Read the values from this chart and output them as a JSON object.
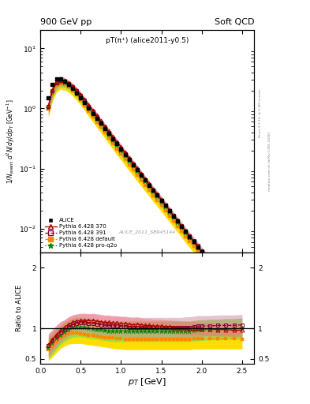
{
  "title_left": "900 GeV pp",
  "title_right": "Soft QCD",
  "plot_title": "pT(π⁺) (alice2011-y0.5)",
  "watermark": "ALICE_2011_S8945144",
  "right_label_top": "Rivet 3.1.10, ≥ 3.4M events",
  "right_label_bot": "mcplots.cern.ch [arXiv:1306.3436]",
  "ylabel": "1/N_{event} d²N/dy/dp_T [GeV⁻¹]",
  "ylabel_ratio": "Ratio to ALICE",
  "xlabel": "p_T [GeV]",
  "xlim": [
    0.0,
    2.65
  ],
  "ylim_main": [
    0.004,
    20
  ],
  "ylim_ratio": [
    0.42,
    2.25
  ],
  "ratio_yticks": [
    0.5,
    1.0,
    2.0
  ],
  "legend_entries": [
    "ALICE",
    "Pythia 6.428 370",
    "Pythia 6.428 391",
    "Pythia 6.428 default",
    "Pythia 6.428 pro-q2o"
  ],
  "calice": "#000000",
  "c370": "#aa0000",
  "c391": "#880044",
  "cdef": "#ff8800",
  "cpro": "#008800",
  "bc370": "#ff6666",
  "bc391": "#cc88aa",
  "bcdef": "#ffdd00",
  "bcpro": "#99dd44",
  "pt_alice": [
    0.1,
    0.15,
    0.2,
    0.25,
    0.3,
    0.35,
    0.4,
    0.45,
    0.5,
    0.55,
    0.6,
    0.65,
    0.7,
    0.75,
    0.8,
    0.85,
    0.9,
    0.95,
    1.0,
    1.05,
    1.1,
    1.15,
    1.2,
    1.25,
    1.3,
    1.35,
    1.4,
    1.45,
    1.5,
    1.55,
    1.6,
    1.65,
    1.7,
    1.75,
    1.8,
    1.85,
    1.9,
    1.95,
    2.0,
    2.1,
    2.2,
    2.3,
    2.4,
    2.5
  ],
  "val_alice": [
    1.5,
    2.5,
    3.1,
    3.1,
    2.85,
    2.5,
    2.15,
    1.82,
    1.52,
    1.24,
    1.01,
    0.83,
    0.685,
    0.563,
    0.462,
    0.38,
    0.311,
    0.256,
    0.211,
    0.172,
    0.141,
    0.116,
    0.095,
    0.078,
    0.064,
    0.053,
    0.043,
    0.036,
    0.0295,
    0.0242,
    0.0198,
    0.0163,
    0.0134,
    0.011,
    0.009,
    0.0074,
    0.0061,
    0.005,
    0.0041,
    0.00285,
    0.00197,
    0.00137,
    0.00097,
    0.00068
  ],
  "ratio_370": [
    0.73,
    0.82,
    0.9,
    0.97,
    1.02,
    1.07,
    1.1,
    1.12,
    1.13,
    1.13,
    1.13,
    1.13,
    1.12,
    1.11,
    1.1,
    1.1,
    1.09,
    1.09,
    1.08,
    1.08,
    1.07,
    1.06,
    1.07,
    1.06,
    1.05,
    1.05,
    1.04,
    1.04,
    1.04,
    1.03,
    1.03,
    1.02,
    1.02,
    1.01,
    1.01,
    1.0,
    1.0,
    1.0,
    0.99,
    0.99,
    0.98,
    0.98,
    0.97,
    0.97
  ],
  "ratio_391": [
    0.72,
    0.79,
    0.87,
    0.94,
    0.98,
    1.03,
    1.06,
    1.08,
    1.09,
    1.09,
    1.08,
    1.08,
    1.07,
    1.06,
    1.05,
    1.05,
    1.04,
    1.04,
    1.03,
    1.03,
    1.02,
    1.02,
    1.02,
    1.01,
    1.01,
    1.01,
    1.01,
    1.01,
    1.01,
    1.01,
    1.01,
    1.01,
    1.01,
    1.01,
    1.02,
    1.02,
    1.03,
    1.04,
    1.04,
    1.04,
    1.05,
    1.05,
    1.05,
    1.06
  ],
  "ratio_def": [
    0.65,
    0.71,
    0.78,
    0.84,
    0.88,
    0.91,
    0.92,
    0.92,
    0.91,
    0.9,
    0.89,
    0.88,
    0.87,
    0.86,
    0.85,
    0.84,
    0.84,
    0.83,
    0.83,
    0.82,
    0.82,
    0.82,
    0.82,
    0.82,
    0.82,
    0.82,
    0.82,
    0.82,
    0.82,
    0.82,
    0.82,
    0.82,
    0.82,
    0.82,
    0.82,
    0.82,
    0.83,
    0.83,
    0.83,
    0.83,
    0.83,
    0.83,
    0.83,
    0.82
  ],
  "ratio_proq2o": [
    0.68,
    0.75,
    0.83,
    0.89,
    0.94,
    0.98,
    1.01,
    1.02,
    1.02,
    1.01,
    1.0,
    0.99,
    0.98,
    0.97,
    0.96,
    0.95,
    0.95,
    0.95,
    0.95,
    0.95,
    0.95,
    0.95,
    0.95,
    0.95,
    0.95,
    0.95,
    0.95,
    0.95,
    0.95,
    0.95,
    0.95,
    0.95,
    0.95,
    0.95,
    0.95,
    0.95,
    0.96,
    0.97,
    0.97,
    0.98,
    0.98,
    0.99,
    0.99,
    1.0
  ],
  "band_370_lo": [
    0.55,
    0.65,
    0.75,
    0.83,
    0.9,
    0.95,
    0.98,
    1.01,
    1.02,
    1.02,
    1.02,
    1.02,
    1.01,
    1.0,
    0.99,
    0.99,
    0.98,
    0.98,
    0.97,
    0.97,
    0.96,
    0.95,
    0.96,
    0.95,
    0.94,
    0.94,
    0.93,
    0.93,
    0.93,
    0.92,
    0.92,
    0.91,
    0.91,
    0.9,
    0.9,
    0.89,
    0.89,
    0.89,
    0.88,
    0.88,
    0.87,
    0.87,
    0.86,
    0.86
  ],
  "band_370_hi": [
    0.91,
    0.99,
    1.05,
    1.11,
    1.14,
    1.19,
    1.22,
    1.23,
    1.24,
    1.24,
    1.24,
    1.24,
    1.23,
    1.22,
    1.21,
    1.21,
    1.2,
    1.2,
    1.19,
    1.19,
    1.18,
    1.17,
    1.18,
    1.17,
    1.16,
    1.16,
    1.15,
    1.15,
    1.15,
    1.14,
    1.14,
    1.13,
    1.13,
    1.12,
    1.12,
    1.11,
    1.11,
    1.11,
    1.1,
    1.1,
    1.09,
    1.09,
    1.08,
    1.08
  ],
  "band_391_lo": [
    0.53,
    0.61,
    0.69,
    0.77,
    0.82,
    0.87,
    0.9,
    0.92,
    0.93,
    0.93,
    0.92,
    0.91,
    0.9,
    0.89,
    0.88,
    0.88,
    0.87,
    0.87,
    0.86,
    0.86,
    0.85,
    0.85,
    0.85,
    0.84,
    0.84,
    0.84,
    0.84,
    0.84,
    0.84,
    0.84,
    0.84,
    0.84,
    0.84,
    0.84,
    0.85,
    0.85,
    0.86,
    0.87,
    0.87,
    0.87,
    0.88,
    0.88,
    0.88,
    0.89
  ],
  "band_391_hi": [
    0.91,
    0.97,
    1.05,
    1.11,
    1.14,
    1.19,
    1.22,
    1.24,
    1.25,
    1.25,
    1.24,
    1.25,
    1.24,
    1.23,
    1.22,
    1.22,
    1.21,
    1.21,
    1.2,
    1.2,
    1.19,
    1.19,
    1.19,
    1.18,
    1.18,
    1.18,
    1.18,
    1.18,
    1.18,
    1.18,
    1.18,
    1.18,
    1.18,
    1.18,
    1.19,
    1.19,
    1.2,
    1.21,
    1.21,
    1.21,
    1.22,
    1.22,
    1.22,
    1.23
  ],
  "band_def_lo": [
    0.47,
    0.53,
    0.6,
    0.67,
    0.71,
    0.74,
    0.75,
    0.75,
    0.75,
    0.74,
    0.73,
    0.72,
    0.71,
    0.7,
    0.69,
    0.68,
    0.67,
    0.66,
    0.66,
    0.65,
    0.65,
    0.65,
    0.65,
    0.65,
    0.65,
    0.65,
    0.65,
    0.65,
    0.65,
    0.65,
    0.65,
    0.65,
    0.65,
    0.65,
    0.65,
    0.65,
    0.66,
    0.66,
    0.66,
    0.66,
    0.66,
    0.66,
    0.66,
    0.66
  ],
  "band_def_hi": [
    0.83,
    0.89,
    0.96,
    1.01,
    1.05,
    1.08,
    1.09,
    1.09,
    1.08,
    1.07,
    1.06,
    1.05,
    1.04,
    1.03,
    1.02,
    1.01,
    1.0,
    1.0,
    0.99,
    0.99,
    0.99,
    0.99,
    0.99,
    0.99,
    0.99,
    0.99,
    0.99,
    0.99,
    0.99,
    0.99,
    0.99,
    0.99,
    0.99,
    0.99,
    0.99,
    0.99,
    1.0,
    1.0,
    1.0,
    1.0,
    1.0,
    1.0,
    1.0,
    1.0
  ],
  "band_proq2o_lo": [
    0.5,
    0.57,
    0.66,
    0.73,
    0.78,
    0.82,
    0.85,
    0.86,
    0.86,
    0.85,
    0.84,
    0.83,
    0.82,
    0.81,
    0.8,
    0.79,
    0.78,
    0.78,
    0.78,
    0.78,
    0.78,
    0.78,
    0.78,
    0.78,
    0.78,
    0.78,
    0.78,
    0.78,
    0.78,
    0.78,
    0.78,
    0.78,
    0.78,
    0.78,
    0.78,
    0.78,
    0.79,
    0.8,
    0.8,
    0.81,
    0.81,
    0.82,
    0.82,
    0.83
  ],
  "band_proq2o_hi": [
    0.86,
    0.93,
    1.0,
    1.05,
    1.1,
    1.14,
    1.17,
    1.18,
    1.18,
    1.17,
    1.16,
    1.15,
    1.14,
    1.13,
    1.12,
    1.12,
    1.12,
    1.12,
    1.12,
    1.12,
    1.12,
    1.12,
    1.12,
    1.12,
    1.12,
    1.12,
    1.12,
    1.12,
    1.12,
    1.12,
    1.12,
    1.12,
    1.12,
    1.12,
    1.12,
    1.12,
    1.13,
    1.14,
    1.14,
    1.15,
    1.15,
    1.16,
    1.16,
    1.17
  ]
}
